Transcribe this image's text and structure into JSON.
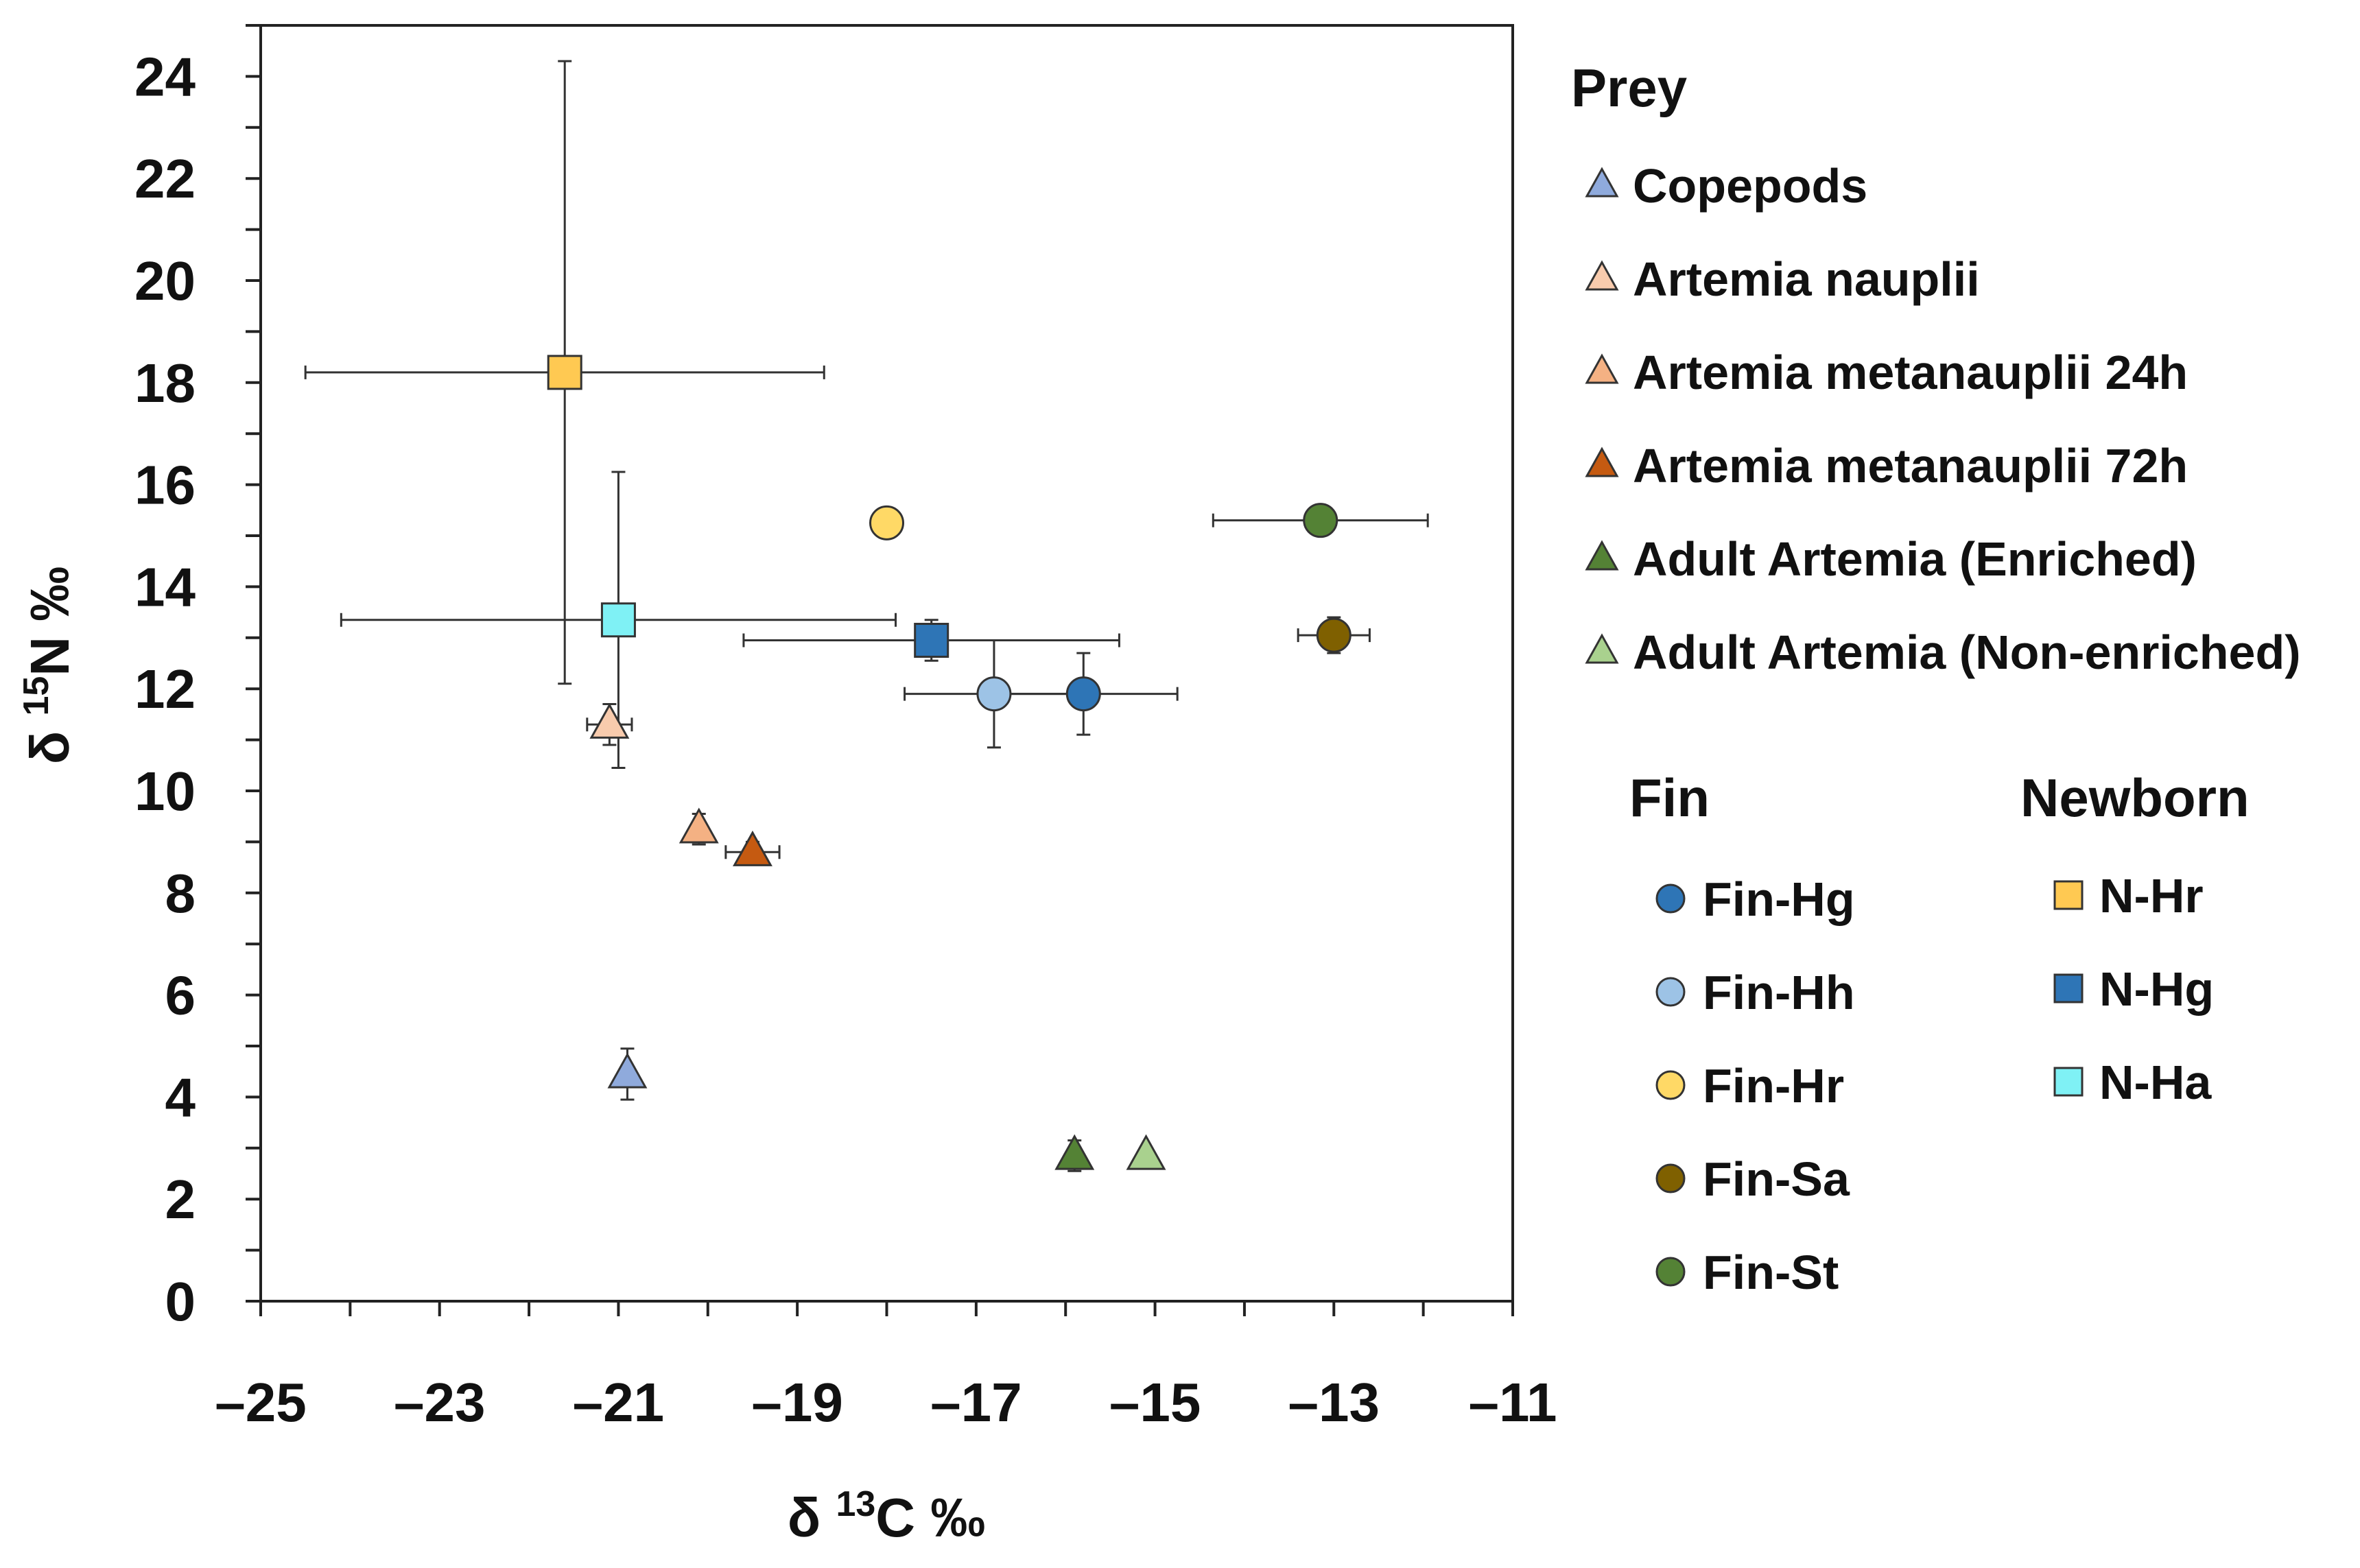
{
  "chart_data": {
    "type": "scatter",
    "xlabel": {
      "prefix": "δ ",
      "sup": "13",
      "suffix": "C ‰"
    },
    "ylabel": {
      "prefix": "δ ",
      "sup": "15",
      "suffix": "N ‰"
    },
    "xlim": [
      -25,
      -11
    ],
    "ylim": [
      0,
      25
    ],
    "x_ticks": [
      -25,
      -23,
      -21,
      -19,
      -17,
      -15,
      -13,
      -11
    ],
    "x_tick_labels": [
      "–25",
      "–23",
      "–21",
      "–19",
      "–17",
      "–15",
      "–13",
      "–11"
    ],
    "y_ticks": [
      0,
      2,
      4,
      6,
      8,
      10,
      12,
      14,
      16,
      18,
      20,
      22,
      24
    ],
    "y_tick_labels": [
      "0",
      "2",
      "4",
      "6",
      "8",
      "10",
      "12",
      "14",
      "16",
      "18",
      "20",
      "22",
      "24"
    ],
    "grid": false,
    "legend_groups": [
      {
        "title": "Prey",
        "series": [
          "Copepods",
          "Artemia nauplii",
          "Artemia metanauplii 24h",
          "Artemia metanauplii 72h",
          "Adult Artemia (Enriched)",
          "Adult Artemia (Non-enriched)"
        ]
      },
      {
        "title": "Fin",
        "series": [
          "Fin-Hg",
          "Fin-Hh",
          "Fin-Hr",
          "Fin-Sa",
          "Fin-St"
        ]
      },
      {
        "title": "Newborn",
        "series": [
          "N-Hr",
          "N-Hg",
          "N-Ha"
        ]
      }
    ],
    "series": [
      {
        "name": "Copepods",
        "group": "Prey",
        "marker": "triangle",
        "color": "#8faadc",
        "x": -20.9,
        "y": 4.45,
        "xerr": 0,
        "yerr": 0.5
      },
      {
        "name": "Artemia nauplii",
        "group": "Prey",
        "marker": "triangle",
        "color": "#f8cbad",
        "x": -21.1,
        "y": 11.3,
        "xerr": 0.25,
        "yerr": 0.4
      },
      {
        "name": "Artemia metanauplii 24h",
        "group": "Prey",
        "marker": "triangle",
        "color": "#f4b183",
        "x": -20.1,
        "y": 9.25,
        "xerr": 0,
        "yerr": 0.3
      },
      {
        "name": "Artemia metanauplii 72h",
        "group": "Prey",
        "marker": "triangle",
        "color": "#c55a11",
        "x": -19.5,
        "y": 8.8,
        "xerr": 0.3,
        "yerr": 0.2
      },
      {
        "name": "Adult Artemia (Enriched)",
        "group": "Prey",
        "marker": "triangle",
        "color": "#548235",
        "x": -15.9,
        "y": 2.85,
        "xerr": 0,
        "yerr": 0.3
      },
      {
        "name": "Adult Artemia (Non-enriched)",
        "group": "Prey",
        "marker": "triangle",
        "color": "#a9d18e",
        "x": -15.1,
        "y": 2.85,
        "xerr": 0,
        "yerr": 0
      },
      {
        "name": "Fin-Hg",
        "group": "Fin",
        "marker": "circle",
        "color": "#2e75b6",
        "x": -15.8,
        "y": 11.9,
        "xerr": 1.05,
        "yerr": 0.8
      },
      {
        "name": "Fin-Hh",
        "group": "Fin",
        "marker": "circle",
        "color": "#9dc3e6",
        "x": -16.8,
        "y": 11.9,
        "xerr": 1.0,
        "yerr": 1.05
      },
      {
        "name": "Fin-Hr",
        "group": "Fin",
        "marker": "circle",
        "color": "#ffd966",
        "x": -18.0,
        "y": 15.25,
        "xerr": 0,
        "yerr": 0
      },
      {
        "name": "Fin-Sa",
        "group": "Fin",
        "marker": "circle",
        "color": "#7f6000",
        "x": -13.0,
        "y": 13.05,
        "xerr": 0.4,
        "yerr": 0.35
      },
      {
        "name": "Fin-St",
        "group": "Fin",
        "marker": "circle",
        "color": "#548235",
        "x": -13.15,
        "y": 15.3,
        "xerr": 1.2,
        "yerr": 0
      },
      {
        "name": "N-Hr",
        "group": "Newborn",
        "marker": "square",
        "color": "#ffc952",
        "x": -21.6,
        "y": 18.2,
        "xerr": 2.9,
        "yerr": 6.1
      },
      {
        "name": "N-Hg",
        "group": "Newborn",
        "marker": "square",
        "color": "#2e75b6",
        "x": -17.5,
        "y": 12.95,
        "xerr": 2.1,
        "yerr": 0.4
      },
      {
        "name": "N-Ha",
        "group": "Newborn",
        "marker": "square",
        "color": "#7ff1f5",
        "x": -21.0,
        "y": 13.35,
        "xerr": 3.1,
        "yerr": 2.9
      }
    ]
  }
}
